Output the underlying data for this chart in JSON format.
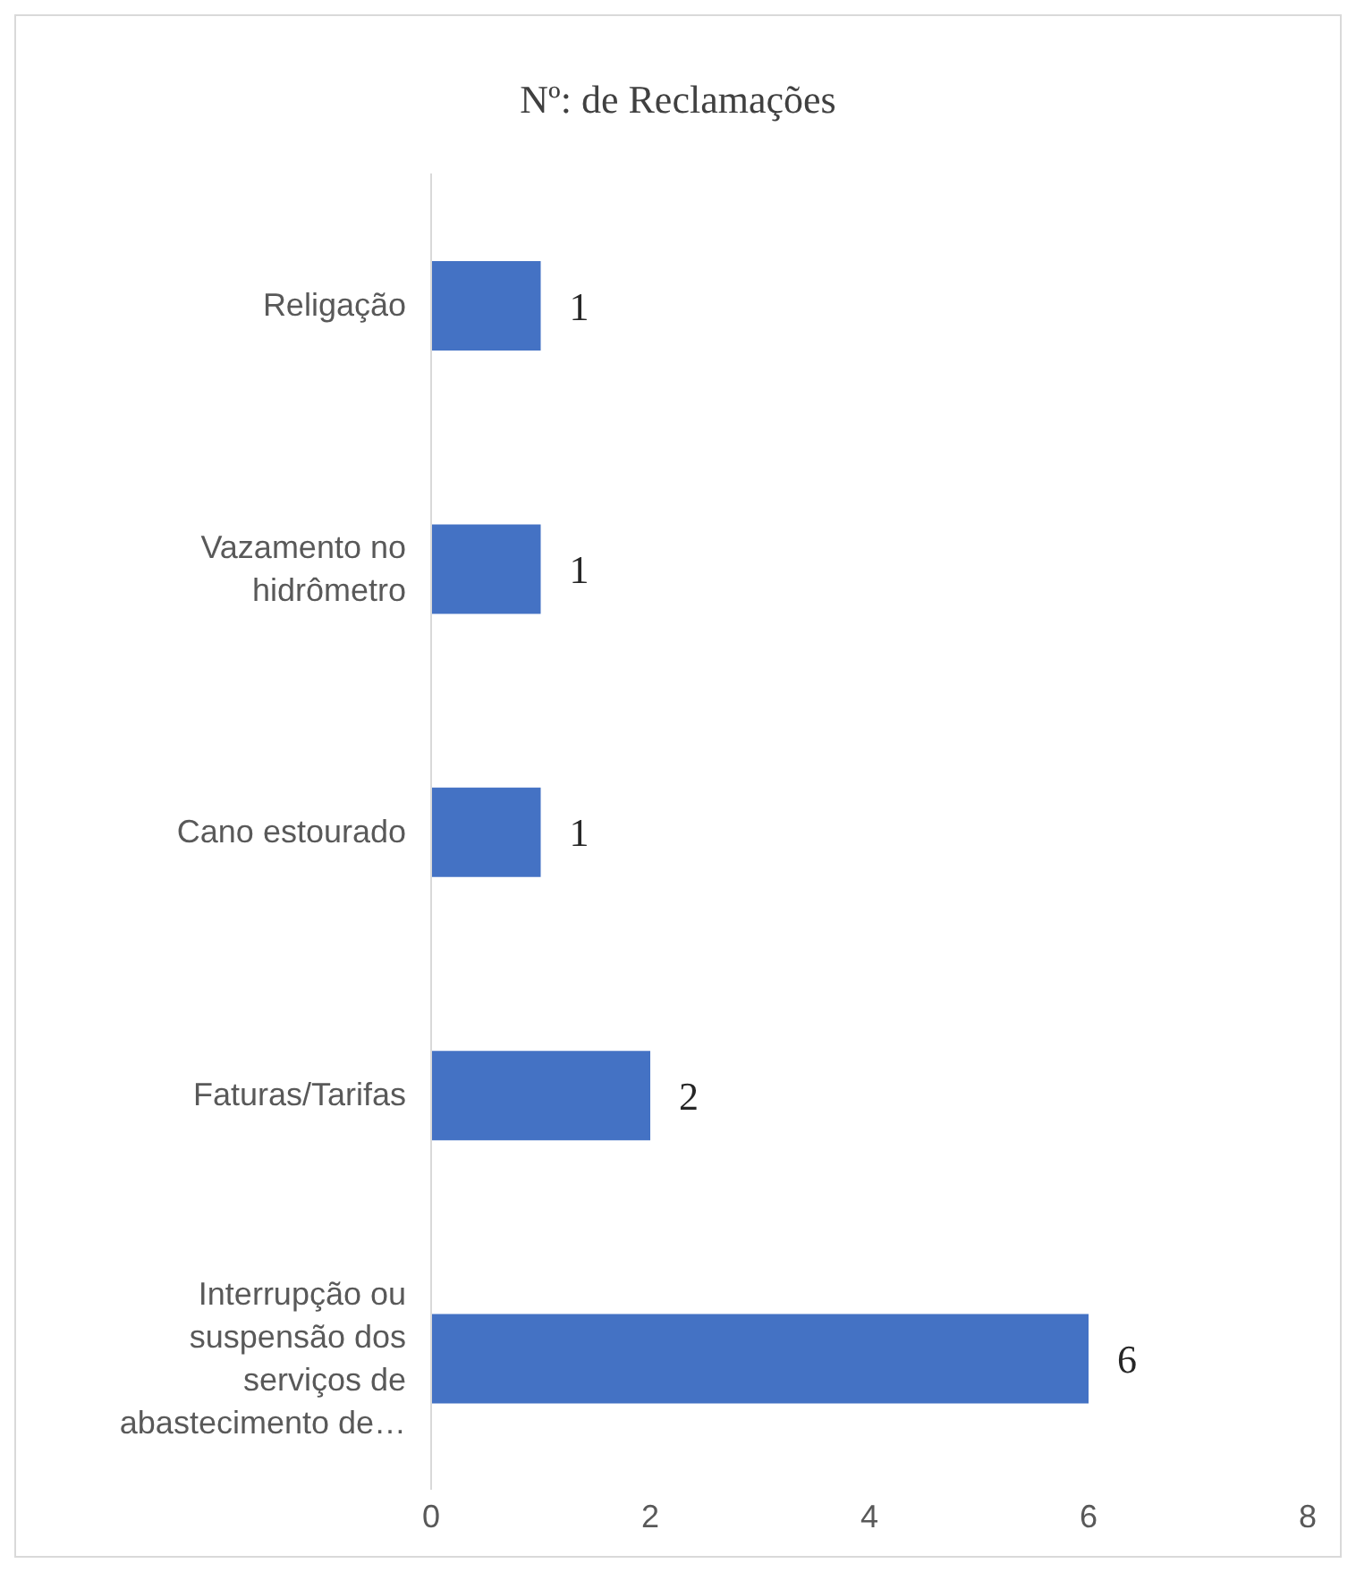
{
  "chart_data": {
    "type": "bar",
    "orientation": "horizontal",
    "title": "Nº: de Reclamações",
    "categories": [
      "Religação",
      "Vazamento no hidrômetro",
      "Cano estourado",
      "Faturas/Tarifas",
      "Interrupção ou suspensão dos serviços de abastecimento de…"
    ],
    "values": [
      1,
      1,
      1,
      2,
      6
    ],
    "color": "#4472c4",
    "xlim": [
      0,
      8
    ],
    "xticks": [
      0,
      2,
      4,
      6,
      8
    ],
    "grid": false,
    "data_labels": true
  }
}
